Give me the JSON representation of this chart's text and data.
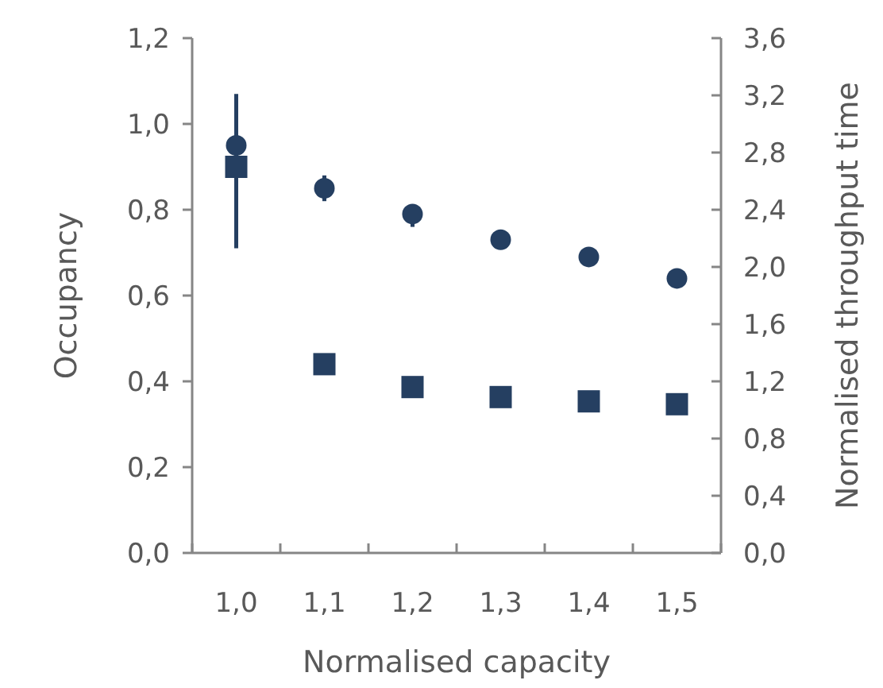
{
  "chart_data": {
    "type": "scatter",
    "xlabel": "Normalised capacity",
    "ylabel": "Occupancy",
    "y2label": "Normalised throughput time",
    "categories": [
      "1,0",
      "1,1",
      "1,2",
      "1,3",
      "1,4",
      "1,5"
    ],
    "ylim": [
      0,
      1.2
    ],
    "yticks": [
      {
        "value": 0,
        "label": "0,0"
      },
      {
        "value": 0.2,
        "label": "0,2"
      },
      {
        "value": 0.4,
        "label": "0,4"
      },
      {
        "value": 0.6,
        "label": "0,6"
      },
      {
        "value": 0.8,
        "label": "0,8"
      },
      {
        "value": 1.0,
        "label": "1,0"
      },
      {
        "value": 1.2,
        "label": "1,2"
      }
    ],
    "y2lim": [
      0,
      3.6
    ],
    "y2ticks": [
      {
        "value": 0,
        "label": "0,0"
      },
      {
        "value": 0.4,
        "label": "0,4"
      },
      {
        "value": 0.8,
        "label": "0,8"
      },
      {
        "value": 1.2,
        "label": "1,2"
      },
      {
        "value": 1.6,
        "label": "1,6"
      },
      {
        "value": 2.0,
        "label": "2,0"
      },
      {
        "value": 2.4,
        "label": "2,4"
      },
      {
        "value": 2.8,
        "label": "2,8"
      },
      {
        "value": 3.2,
        "label": "3,2"
      },
      {
        "value": 3.6,
        "label": "3,6"
      }
    ],
    "grid": false,
    "series": [
      {
        "color": "#253f61",
        "marker": "circle",
        "values": [
          0.95,
          0.85,
          0.79,
          0.73,
          0.69,
          0.64
        ],
        "errors": [
          [
            0.71,
            1.07
          ],
          [
            0.82,
            0.88
          ],
          [
            0.76,
            0.81
          ],
          null,
          null,
          null
        ]
      },
      {
        "color": "#253f61",
        "marker": "square",
        "axis": "y2",
        "values": [
          2.7,
          1.32,
          1.16,
          1.09,
          1.06,
          1.04
        ]
      }
    ]
  }
}
